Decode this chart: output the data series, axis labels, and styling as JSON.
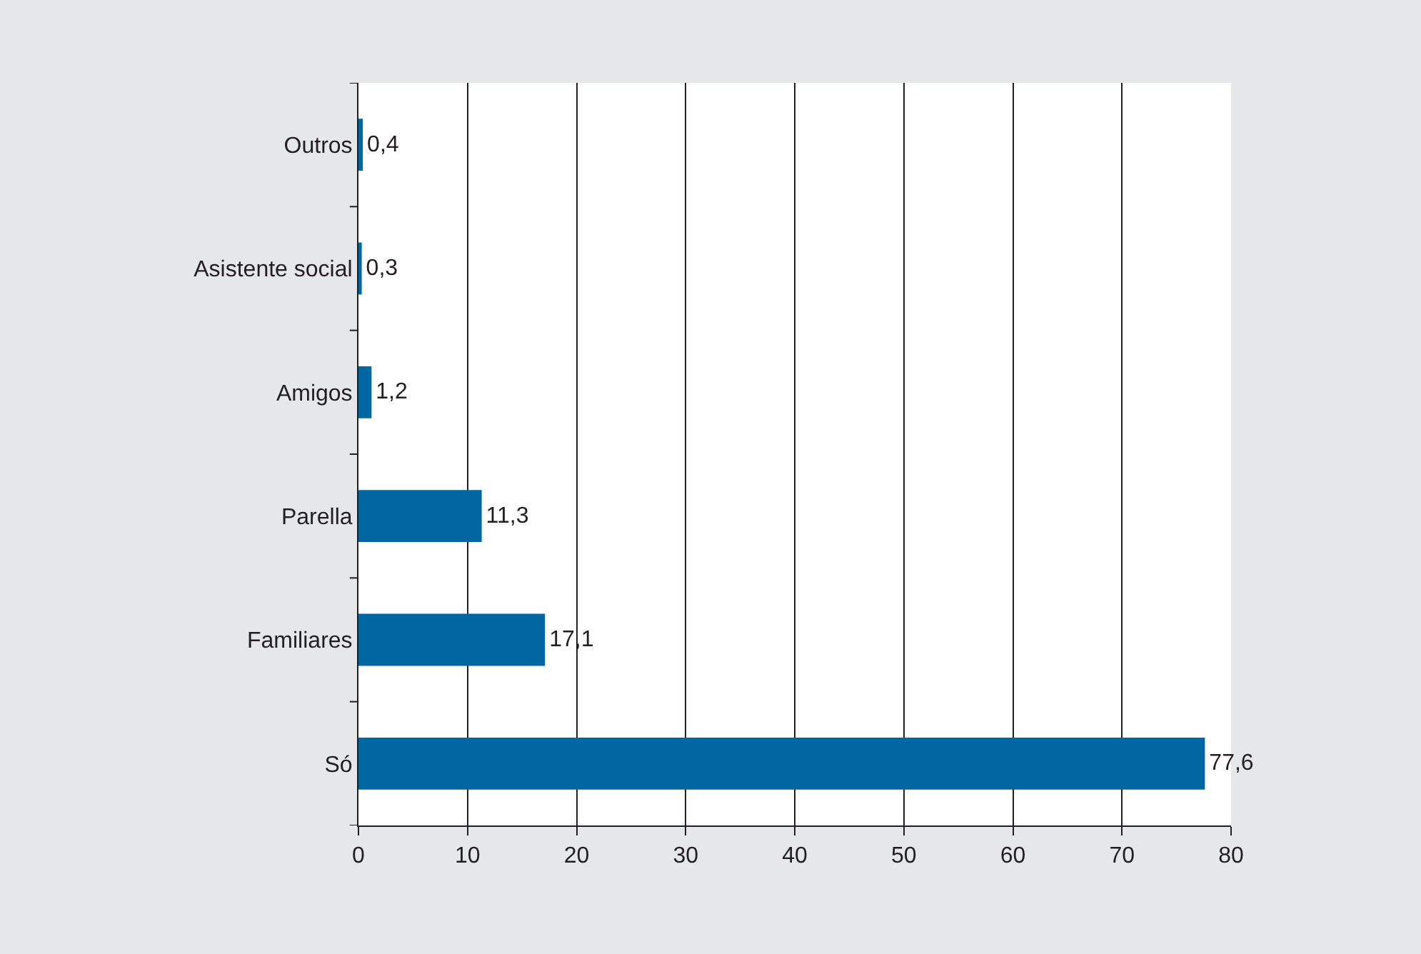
{
  "chart_data": {
    "type": "bar",
    "orientation": "horizontal",
    "categories": [
      "Outros",
      "Asistente social",
      "Amigos",
      "Parella",
      "Familiares",
      "Só"
    ],
    "values": [
      0.4,
      0.3,
      1.2,
      11.3,
      17.1,
      77.6
    ],
    "value_labels": [
      "0,4",
      "0,3",
      "1,2",
      "11,3",
      "17,1",
      "77,6"
    ],
    "color": "#0066a1",
    "xlim": [
      0,
      80
    ],
    "xticks": [
      0,
      10,
      20,
      30,
      40,
      50,
      60,
      70,
      80
    ],
    "grid": "x"
  }
}
